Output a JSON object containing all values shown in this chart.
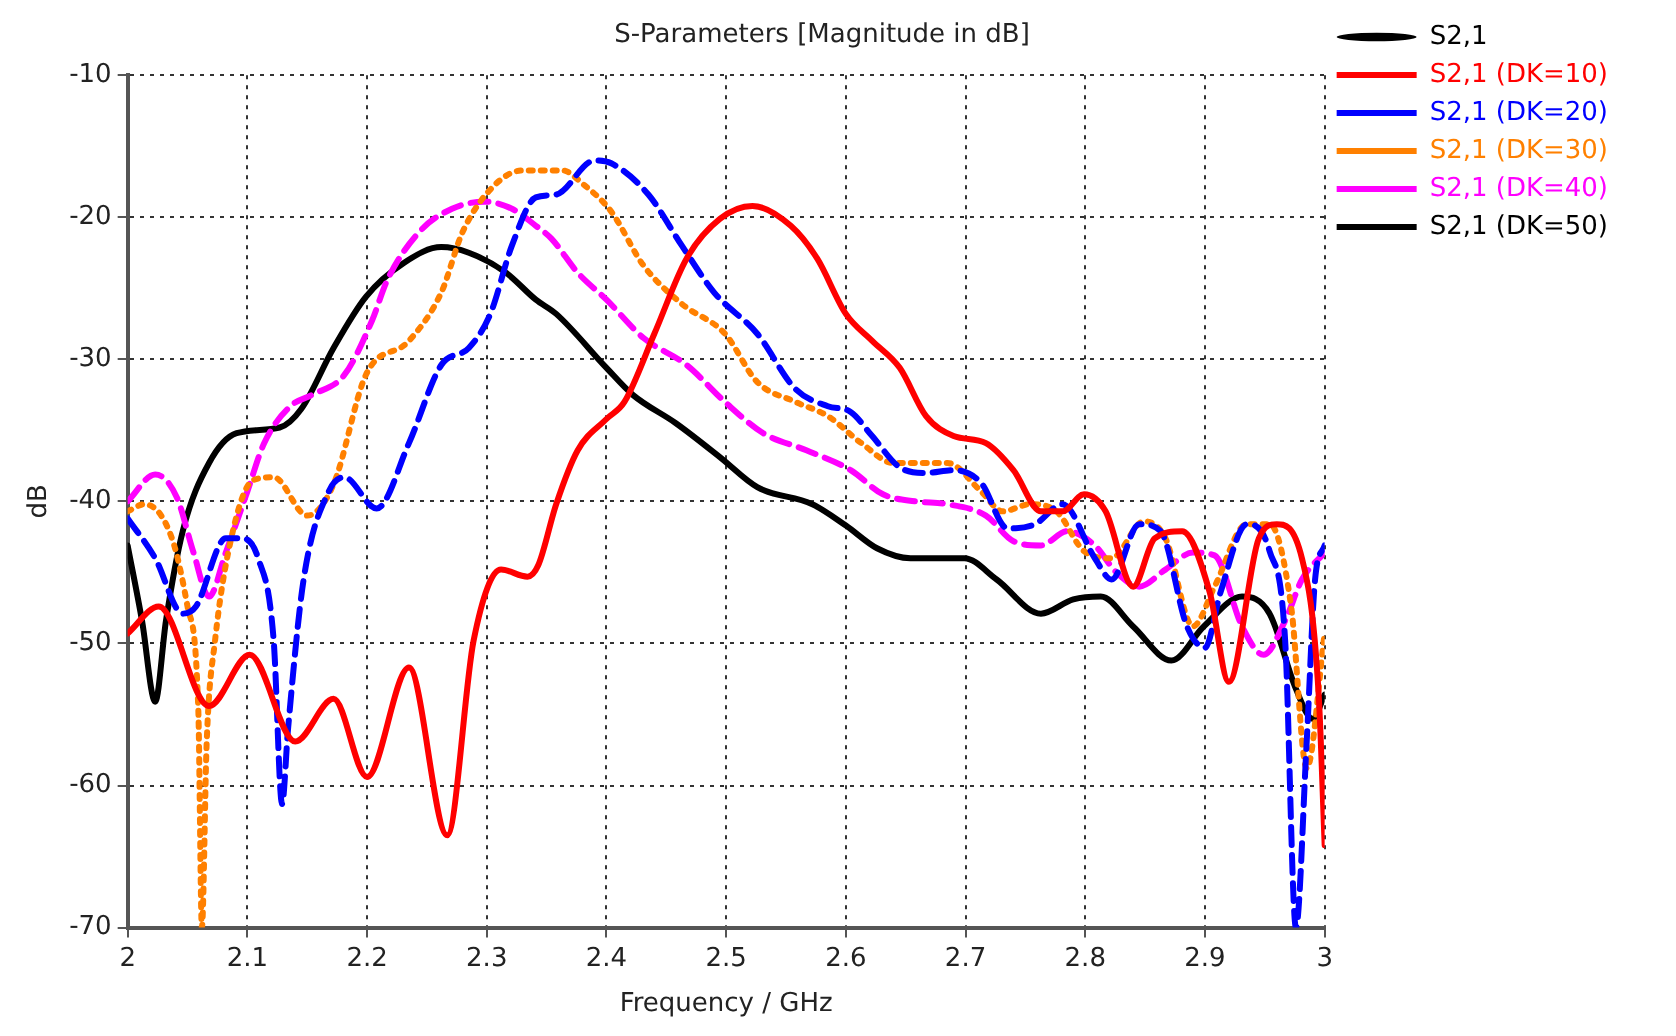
{
  "chart_data": {
    "type": "line",
    "title": "S-Parameters [Magnitude in dB]",
    "xlabel": "Frequency / GHz",
    "ylabel": "dB",
    "xlim": [
      2,
      3
    ],
    "xticks": [
      2,
      2.1,
      2.2,
      2.3,
      2.4,
      2.5,
      2.6,
      2.7,
      2.8,
      2.9,
      3
    ],
    "ylim": [
      -70,
      -10
    ],
    "yticks": [
      -70,
      -60,
      -50,
      -40,
      -30,
      -20,
      -10
    ],
    "grid": true,
    "legend": "top right",
    "series": [
      {
        "name": "S2,1",
        "type": "scatter",
        "color": "#000000"
      },
      {
        "name": "S2,1 (DK=10)",
        "color": "#ff0000",
        "line_style": "solid",
        "x": [
          2.0,
          2.026,
          2.068,
          2.102,
          2.14,
          2.172,
          2.2,
          2.235,
          2.267,
          2.289,
          2.312,
          2.334,
          2.343,
          2.358,
          2.376,
          2.4,
          2.415,
          2.44,
          2.467,
          2.495,
          2.522,
          2.554,
          2.576,
          2.6,
          2.622,
          2.645,
          2.667,
          2.69,
          2.717,
          2.74,
          2.763,
          2.781,
          2.799,
          2.817,
          2.84,
          2.858,
          2.881,
          2.904,
          2.92,
          2.945,
          2.96,
          2.981,
          2.995,
          3.0
        ],
        "values": [
          -49.3,
          -47.4,
          -54.4,
          -50.8,
          -56.9,
          -53.9,
          -59.4,
          -51.7,
          -63.5,
          -49.8,
          -44.8,
          -45.3,
          -44.5,
          -40.2,
          -36.4,
          -34.2,
          -33,
          -28.2,
          -22.9,
          -20.1,
          -19.2,
          -20.6,
          -22.9,
          -26.8,
          -28.7,
          -30.6,
          -34,
          -35.4,
          -35.9,
          -37.8,
          -40.7,
          -40.7,
          -39.5,
          -40.7,
          -46,
          -42.6,
          -42.1,
          -46.4,
          -52.7,
          -42.6,
          -41.6,
          -44,
          -53.6,
          -64.2
        ]
      },
      {
        "name": "S2,1 (DK=20)",
        "color": "#0000ff",
        "line_style": "dashed",
        "x": [
          2.0,
          2.023,
          2.046,
          2.057,
          2.082,
          2.095,
          2.109,
          2.122,
          2.129,
          2.134,
          2.147,
          2.168,
          2.181,
          2.208,
          2.235,
          2.262,
          2.285,
          2.303,
          2.321,
          2.341,
          2.358,
          2.39,
          2.404,
          2.435,
          2.463,
          2.49,
          2.526,
          2.558,
          2.585,
          2.604,
          2.622,
          2.645,
          2.667,
          2.69,
          2.713,
          2.735,
          2.758,
          2.781,
          2.808,
          2.822,
          2.845,
          2.863,
          2.885,
          2.9,
          2.913,
          2.935,
          2.954,
          2.967,
          2.976,
          2.985,
          2.992,
          3.0
        ],
        "values": [
          -41.2,
          -44,
          -47.9,
          -47.4,
          -42.6,
          -42.6,
          -44,
          -49.8,
          -61.3,
          -56,
          -45.5,
          -39.3,
          -38.3,
          -40.5,
          -35.9,
          -30.4,
          -29.2,
          -26.8,
          -22,
          -18.6,
          -18.4,
          -16,
          -16.2,
          -18.4,
          -22,
          -25.3,
          -28.2,
          -32.1,
          -33.3,
          -33.7,
          -35.4,
          -37.6,
          -38,
          -37.8,
          -38.7,
          -41.9,
          -41.6,
          -40.2,
          -44,
          -45.5,
          -41.6,
          -42.1,
          -48.8,
          -50.3,
          -46.4,
          -41.6,
          -43.5,
          -49.8,
          -70,
          -56.9,
          -45.5,
          -43.1
        ]
      },
      {
        "name": "S2,1 (DK=30)",
        "color": "#ff8000",
        "line_style": "dotted",
        "x": [
          2.0,
          2.014,
          2.037,
          2.05,
          2.059,
          2.062,
          2.066,
          2.073,
          2.089,
          2.105,
          2.122,
          2.15,
          2.172,
          2.199,
          2.235,
          2.262,
          2.28,
          2.307,
          2.33,
          2.363,
          2.381,
          2.404,
          2.431,
          2.463,
          2.499,
          2.526,
          2.558,
          2.585,
          2.613,
          2.64,
          2.658,
          2.685,
          2.713,
          2.731,
          2.754,
          2.776,
          2.799,
          2.822,
          2.849,
          2.867,
          2.89,
          2.908,
          2.935,
          2.954,
          2.972,
          2.985,
          3.0
        ],
        "values": [
          -40.7,
          -40.2,
          -42.6,
          -47.4,
          -54.6,
          -70,
          -57,
          -49.8,
          -41.7,
          -38.5,
          -38.3,
          -41,
          -38.8,
          -31.1,
          -28.7,
          -25.3,
          -21,
          -17.7,
          -16.7,
          -16.7,
          -17.7,
          -19.6,
          -23.4,
          -26.1,
          -28.2,
          -31.6,
          -33,
          -34,
          -35.9,
          -37.3,
          -37.3,
          -37.3,
          -39.3,
          -40.7,
          -40.2,
          -40.7,
          -43.5,
          -44,
          -41.4,
          -42.6,
          -48.8,
          -46,
          -41.6,
          -41.6,
          -47.4,
          -58.8,
          -49.3
        ]
      },
      {
        "name": "S2,1 (DK=40)",
        "color": "#ff00ff",
        "line_style": "dashed",
        "x": [
          2.0,
          2.023,
          2.041,
          2.055,
          2.068,
          2.082,
          2.1,
          2.114,
          2.136,
          2.154,
          2.181,
          2.204,
          2.217,
          2.244,
          2.271,
          2.298,
          2.321,
          2.341,
          2.354,
          2.376,
          2.4,
          2.431,
          2.467,
          2.499,
          2.531,
          2.567,
          2.604,
          2.631,
          2.658,
          2.685,
          2.717,
          2.74,
          2.763,
          2.785,
          2.808,
          2.826,
          2.845,
          2.867,
          2.89,
          2.908,
          2.931,
          2.949,
          2.967,
          2.981,
          3.0
        ],
        "values": [
          -40,
          -38.1,
          -39.7,
          -43.6,
          -46.7,
          -43.6,
          -39.3,
          -35.9,
          -33.3,
          -32.5,
          -31.1,
          -27.3,
          -24.4,
          -21,
          -19.4,
          -18.9,
          -19.4,
          -20.6,
          -21.5,
          -23.9,
          -25.8,
          -28.5,
          -30.4,
          -33,
          -35.2,
          -36.4,
          -37.8,
          -39.5,
          -40,
          -40.2,
          -41,
          -42.8,
          -43.1,
          -42.1,
          -43.1,
          -45,
          -46,
          -44.8,
          -43.6,
          -43.8,
          -48.8,
          -50.8,
          -48.4,
          -45.5,
          -43.6
        ]
      },
      {
        "name": "S2,1 (DK=50)",
        "color": "#000000",
        "line_style": "solid",
        "x": [
          2.0,
          2.012,
          2.023,
          2.032,
          2.046,
          2.068,
          2.091,
          2.127,
          2.145,
          2.172,
          2.199,
          2.231,
          2.262,
          2.285,
          2.316,
          2.341,
          2.358,
          2.4,
          2.422,
          2.458,
          2.495,
          2.526,
          2.572,
          2.6,
          2.626,
          2.654,
          2.685,
          2.699,
          2.726,
          2.763,
          2.79,
          2.813,
          2.84,
          2.872,
          2.899,
          2.931,
          2.954,
          2.976,
          2.99,
          3.0
        ],
        "values": [
          -43.1,
          -48.4,
          -54.1,
          -48.4,
          -42.1,
          -37.3,
          -35.2,
          -34.8,
          -33.5,
          -29.2,
          -25.6,
          -23.2,
          -22.1,
          -22.5,
          -23.9,
          -25.8,
          -26.8,
          -30.6,
          -32.5,
          -34.5,
          -36.9,
          -39,
          -40.2,
          -41.7,
          -43.3,
          -44,
          -44,
          -44,
          -45.5,
          -47.9,
          -46.9,
          -46.7,
          -48.8,
          -51.2,
          -48.8,
          -46.7,
          -47.9,
          -53.2,
          -55.3,
          -53.6
        ]
      }
    ]
  }
}
